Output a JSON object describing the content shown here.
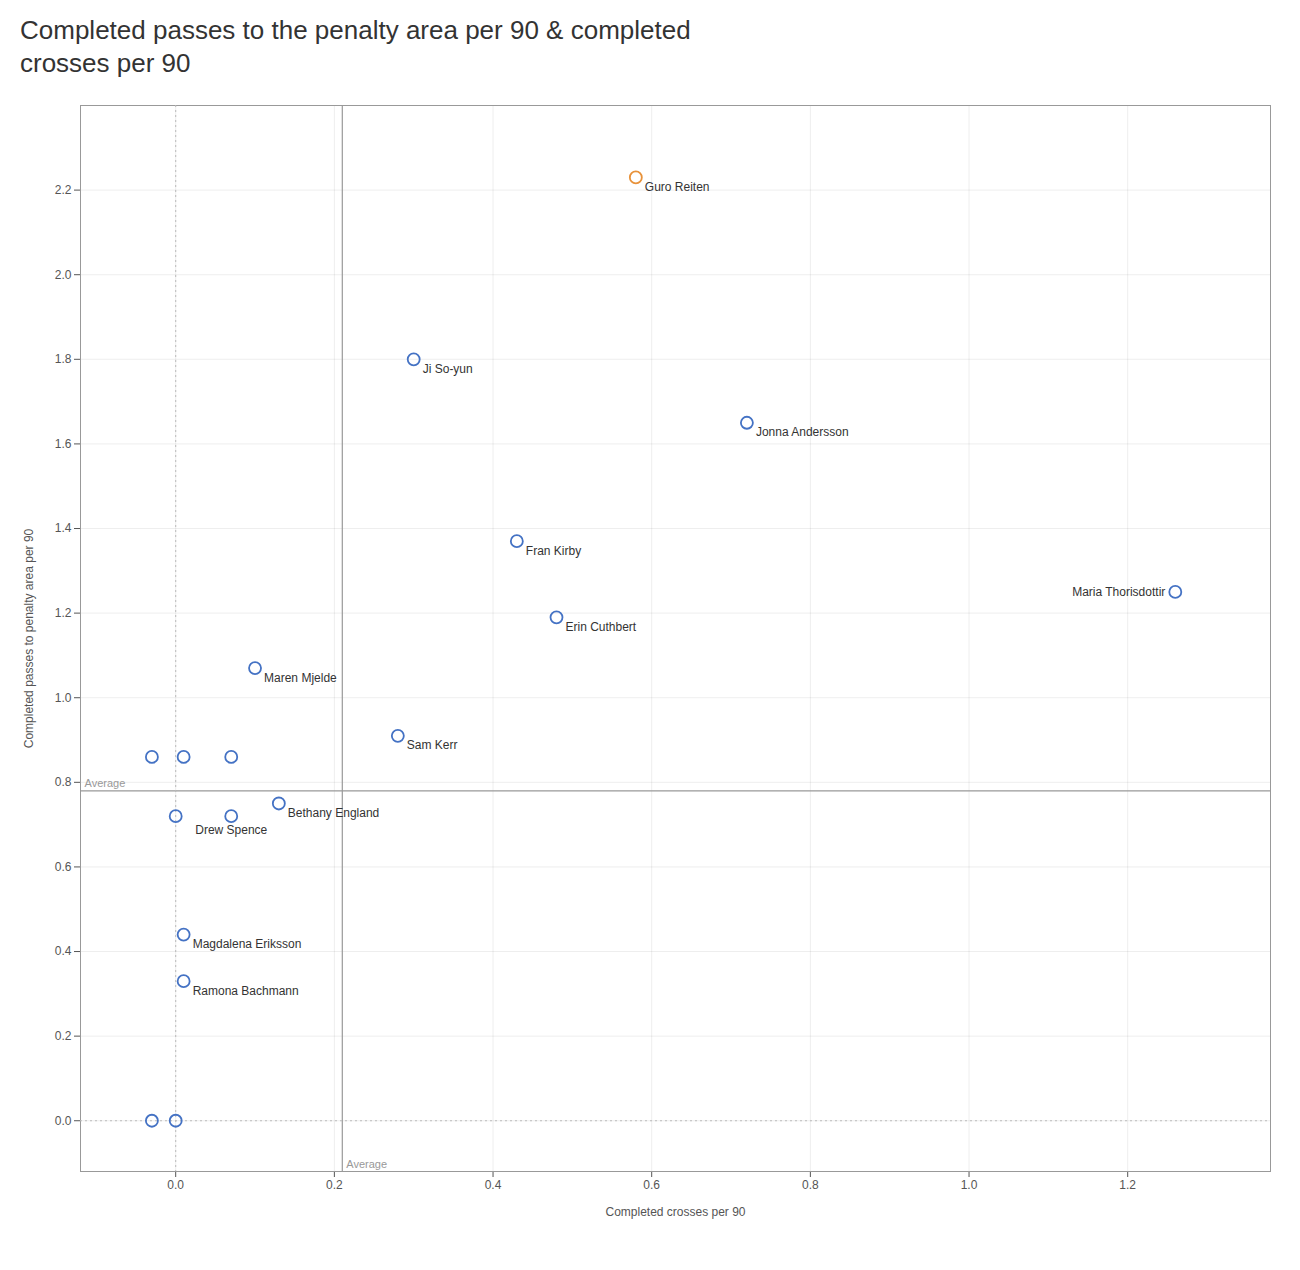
{
  "chart_data": {
    "type": "scatter",
    "title": "Completed passes to the penalty area per 90 & completed\ncrosses per 90",
    "xlabel": "Completed crosses per 90",
    "ylabel": "Completed passes to penalty area per 90",
    "x": [
      0.58,
      0.3,
      0.72,
      0.43,
      0.48,
      1.26,
      0.1,
      0.28,
      0.13,
      0.07,
      0.01,
      0.01,
      -0.03,
      0.01,
      0.07,
      0.0,
      -0.03,
      0.0
    ],
    "values": [
      2.23,
      1.8,
      1.65,
      1.37,
      1.19,
      1.25,
      1.07,
      0.91,
      0.75,
      0.72,
      0.44,
      0.33,
      0.86,
      0.86,
      0.86,
      0.72,
      0.0,
      0.0
    ],
    "colors": [
      "#e8923a",
      "#4472c4",
      "#4472c4",
      "#4472c4",
      "#4472c4",
      "#4472c4",
      "#4472c4",
      "#4472c4",
      "#4472c4",
      "#4472c4",
      "#4472c4",
      "#4472c4",
      "#4472c4",
      "#4472c4",
      "#4472c4",
      "#4472c4",
      "#4472c4",
      "#4472c4"
    ],
    "point_labels": [
      "Guro Reiten",
      "Ji So-yun",
      "Jonna Andersson",
      "Fran Kirby",
      "Erin Cuthbert",
      "Maria Thorisdottir",
      "Maren Mjelde",
      "Sam Kerr",
      "Bethany England",
      "Drew Spence",
      "Magdalena Eriksson",
      "Ramona Bachmann",
      null,
      null,
      null,
      null,
      null,
      null
    ],
    "marker": "circle",
    "reference_lines": [
      {
        "axis": "x",
        "value": 0.21,
        "label": "Average",
        "line_style": "solid"
      },
      {
        "axis": "y",
        "value": 0.78,
        "label": "Average",
        "line_style": "solid"
      },
      {
        "axis": "x",
        "value": 0.0,
        "line_style": "dotted"
      },
      {
        "axis": "y",
        "value": 0.0,
        "line_style": "dotted"
      }
    ],
    "xlim": [
      -0.12,
      1.38
    ],
    "ylim": [
      -0.12,
      2.4
    ],
    "xticks": [
      {
        "value": 0.0,
        "label": "0.0"
      },
      0.2,
      0.4,
      0.6,
      0.8,
      {
        "value": 1.0,
        "label": "1.0"
      },
      1.2
    ],
    "yticks": [
      {
        "value": 0.0,
        "label": "0.0"
      },
      0.2,
      0.4,
      0.6,
      0.8,
      {
        "value": 1.0,
        "label": "1.0"
      },
      1.2,
      1.4,
      1.6,
      1.8,
      {
        "value": 2.0,
        "label": "2.0"
      },
      2.2
    ],
    "grid": true
  }
}
